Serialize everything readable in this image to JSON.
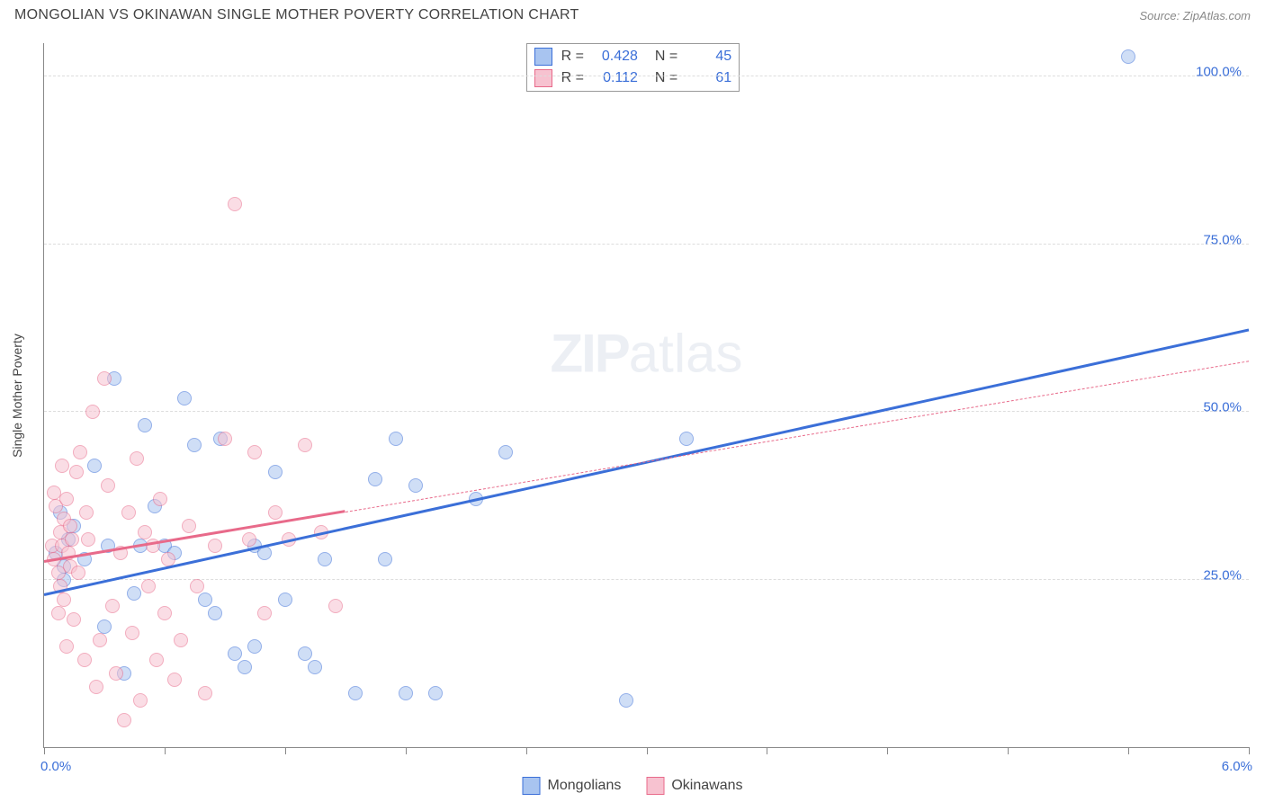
{
  "header": {
    "title": "MONGOLIAN VS OKINAWAN SINGLE MOTHER POVERTY CORRELATION CHART",
    "source": "Source: ZipAtlas.com"
  },
  "watermark": {
    "zip": "ZIP",
    "atlas": "atlas"
  },
  "chart": {
    "type": "scatter",
    "yaxis_title": "Single Mother Poverty",
    "xlim": [
      0.0,
      6.0
    ],
    "ylim": [
      0.0,
      105.0
    ],
    "x_tick_positions": [
      0.0,
      0.6,
      1.2,
      1.8,
      2.4,
      3.0,
      3.6,
      4.2,
      4.8,
      5.4,
      6.0
    ],
    "x_label_min": "0.0%",
    "x_label_max": "6.0%",
    "y_gridlines": [
      {
        "value": 25.0,
        "label": "25.0%"
      },
      {
        "value": 50.0,
        "label": "50.0%"
      },
      {
        "value": 75.0,
        "label": "75.0%"
      },
      {
        "value": 100.0,
        "label": "100.0%"
      }
    ],
    "background_color": "#ffffff",
    "grid_color": "#dddddd",
    "axis_color": "#888888",
    "marker_radius": 8,
    "marker_opacity": 0.55,
    "series": [
      {
        "name": "Mongolians",
        "R": "0.428",
        "N": "45",
        "color_stroke": "#3b6fd8",
        "color_fill": "#a8c4f0",
        "trend": {
          "x0": 0.0,
          "y0": 22.5,
          "x1": 6.0,
          "y1": 62.0,
          "solid_until_x": 6.0,
          "solid_width": 3
        },
        "points": [
          [
            0.06,
            29
          ],
          [
            0.08,
            35
          ],
          [
            0.1,
            27
          ],
          [
            0.12,
            31
          ],
          [
            0.1,
            25
          ],
          [
            0.15,
            33
          ],
          [
            0.25,
            42
          ],
          [
            0.3,
            18
          ],
          [
            0.35,
            55
          ],
          [
            0.4,
            11
          ],
          [
            0.45,
            23
          ],
          [
            0.5,
            48
          ],
          [
            0.55,
            36
          ],
          [
            0.6,
            30
          ],
          [
            0.65,
            29
          ],
          [
            0.7,
            52
          ],
          [
            0.75,
            45
          ],
          [
            0.8,
            22
          ],
          [
            0.85,
            20
          ],
          [
            0.88,
            46
          ],
          [
            0.95,
            14
          ],
          [
            1.0,
            12
          ],
          [
            1.05,
            30
          ],
          [
            1.05,
            15
          ],
          [
            1.1,
            29
          ],
          [
            1.15,
            41
          ],
          [
            1.2,
            22
          ],
          [
            1.3,
            14
          ],
          [
            1.35,
            12
          ],
          [
            1.4,
            28
          ],
          [
            1.55,
            8
          ],
          [
            1.65,
            40
          ],
          [
            1.7,
            28
          ],
          [
            1.75,
            46
          ],
          [
            1.8,
            8
          ],
          [
            1.85,
            39
          ],
          [
            1.95,
            8
          ],
          [
            2.15,
            37
          ],
          [
            2.3,
            44
          ],
          [
            2.9,
            7
          ],
          [
            3.2,
            46
          ],
          [
            5.4,
            103
          ],
          [
            0.2,
            28
          ],
          [
            0.32,
            30
          ],
          [
            0.48,
            30
          ]
        ]
      },
      {
        "name": "Okinawans",
        "R": "0.112",
        "N": "61",
        "color_stroke": "#e86a8a",
        "color_fill": "#f7c2d0",
        "trend": {
          "x0": 0.0,
          "y0": 27.5,
          "x1": 6.0,
          "y1": 57.5,
          "solid_until_x": 1.5,
          "solid_width": 3
        },
        "points": [
          [
            0.04,
            30
          ],
          [
            0.05,
            28
          ],
          [
            0.06,
            36
          ],
          [
            0.07,
            26
          ],
          [
            0.08,
            32
          ],
          [
            0.08,
            24
          ],
          [
            0.09,
            30
          ],
          [
            0.1,
            34
          ],
          [
            0.1,
            22
          ],
          [
            0.11,
            37
          ],
          [
            0.12,
            29
          ],
          [
            0.13,
            27
          ],
          [
            0.14,
            31
          ],
          [
            0.15,
            19
          ],
          [
            0.16,
            41
          ],
          [
            0.18,
            44
          ],
          [
            0.2,
            13
          ],
          [
            0.22,
            31
          ],
          [
            0.24,
            50
          ],
          [
            0.26,
            9
          ],
          [
            0.28,
            16
          ],
          [
            0.3,
            55
          ],
          [
            0.32,
            39
          ],
          [
            0.34,
            21
          ],
          [
            0.36,
            11
          ],
          [
            0.38,
            29
          ],
          [
            0.4,
            4
          ],
          [
            0.42,
            35
          ],
          [
            0.44,
            17
          ],
          [
            0.46,
            43
          ],
          [
            0.48,
            7
          ],
          [
            0.5,
            32
          ],
          [
            0.52,
            24
          ],
          [
            0.54,
            30
          ],
          [
            0.56,
            13
          ],
          [
            0.58,
            37
          ],
          [
            0.6,
            20
          ],
          [
            0.62,
            28
          ],
          [
            0.65,
            10
          ],
          [
            0.68,
            16
          ],
          [
            0.72,
            33
          ],
          [
            0.76,
            24
          ],
          [
            0.8,
            8
          ],
          [
            0.85,
            30
          ],
          [
            0.9,
            46
          ],
          [
            0.95,
            81
          ],
          [
            1.02,
            31
          ],
          [
            1.05,
            44
          ],
          [
            1.1,
            20
          ],
          [
            1.15,
            35
          ],
          [
            1.22,
            31
          ],
          [
            1.3,
            45
          ],
          [
            1.38,
            32
          ],
          [
            1.45,
            21
          ],
          [
            0.05,
            38
          ],
          [
            0.07,
            20
          ],
          [
            0.09,
            42
          ],
          [
            0.11,
            15
          ],
          [
            0.13,
            33
          ],
          [
            0.17,
            26
          ],
          [
            0.21,
            35
          ]
        ]
      }
    ],
    "bottom_legend": [
      {
        "label": "Mongolians",
        "stroke": "#3b6fd8",
        "fill": "#a8c4f0"
      },
      {
        "label": "Okinawans",
        "stroke": "#e86a8a",
        "fill": "#f7c2d0"
      }
    ]
  }
}
